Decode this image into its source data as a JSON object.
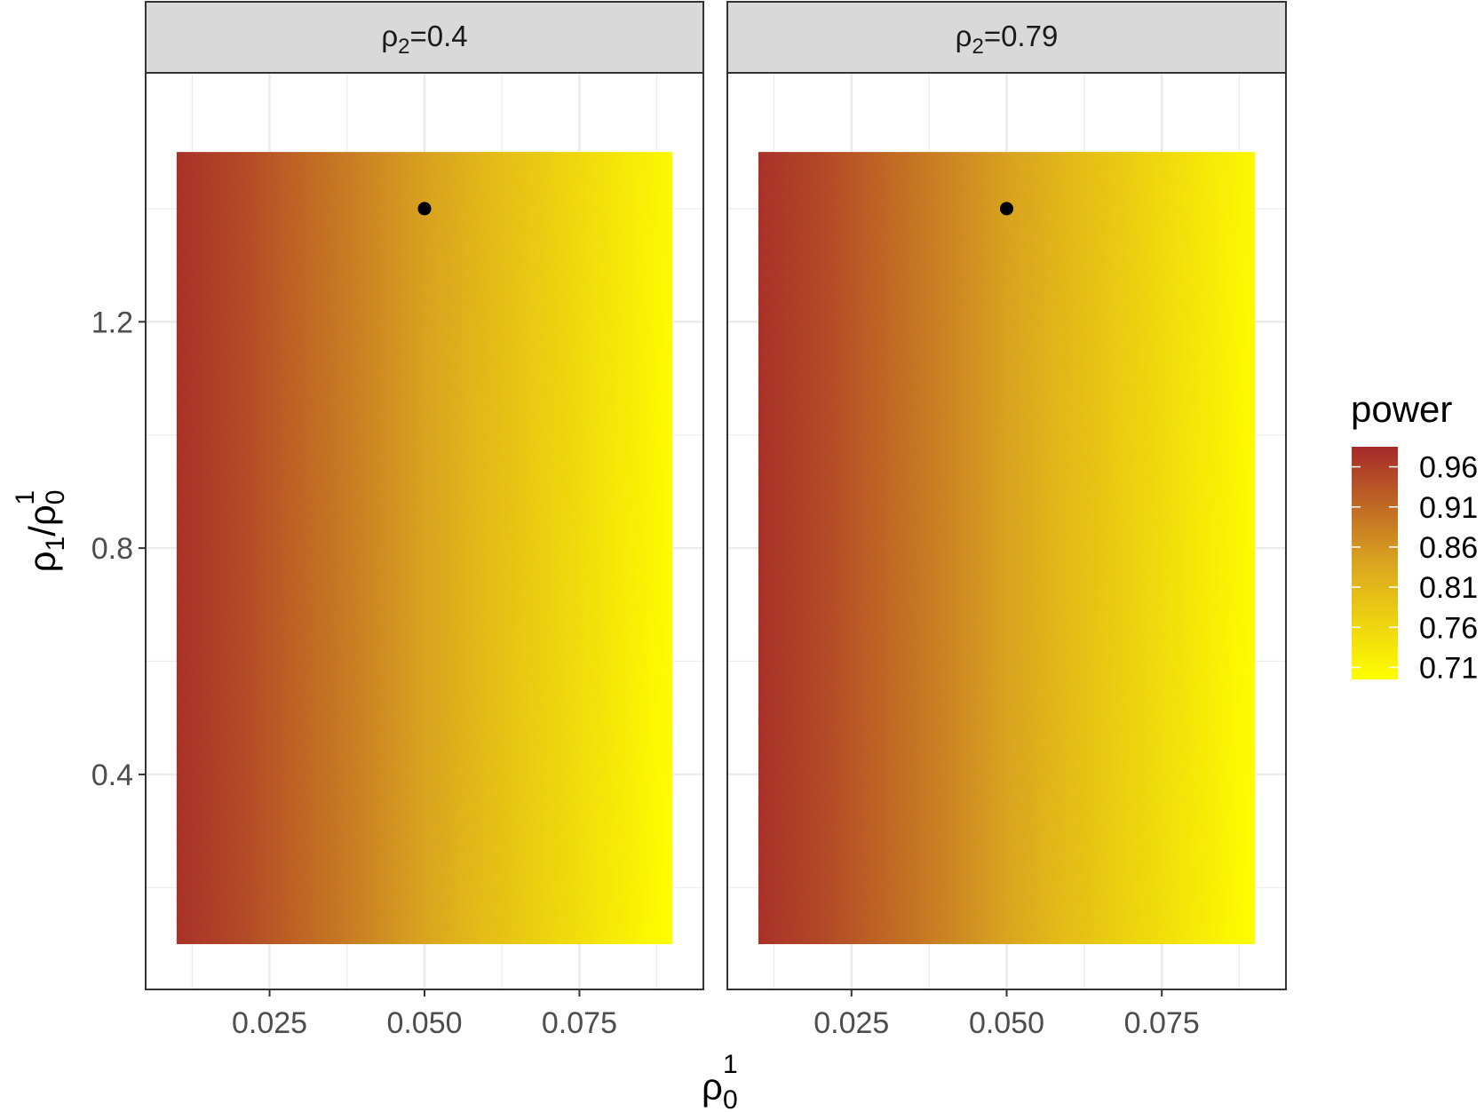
{
  "chart_data": {
    "type": "heatmap",
    "x_axis": {
      "label_base": "ρ",
      "label_sub": "0",
      "label_sup": "1",
      "range": [
        0.005,
        0.095
      ],
      "ticks": [
        0.025,
        0.05,
        0.075
      ],
      "tick_labels": [
        "0.025",
        "0.050",
        "0.075"
      ]
    },
    "y_axis": {
      "label_parts": [
        "ρ",
        "1",
        "/",
        "ρ",
        "0",
        "1"
      ],
      "range": [
        0.02,
        1.64
      ],
      "ticks": [
        0.4,
        0.8,
        1.2
      ],
      "tick_labels": [
        "0.4",
        "0.8",
        "1.2"
      ]
    },
    "grid": true,
    "legend": {
      "title": "power",
      "position": "right",
      "range": [
        0.695,
        0.985
      ],
      "breaks": [
        0.96,
        0.91,
        0.86,
        0.81,
        0.76,
        0.71
      ],
      "break_labels": [
        "0.96",
        "0.91",
        "0.86",
        "0.81",
        "0.76",
        "0.71"
      ],
      "colors": {
        "high": "#a52a2a",
        "mid": "#daa520",
        "low": "#ffff00"
      }
    },
    "tile_extent": {
      "x": [
        0.01,
        0.09
      ],
      "y": [
        0.1,
        1.5
      ]
    },
    "power_profile": {
      "x": [
        0.01,
        0.02,
        0.03,
        0.04,
        0.05,
        0.06,
        0.07,
        0.08,
        0.09
      ],
      "power_at_top": [
        0.975,
        0.95,
        0.915,
        0.88,
        0.845,
        0.81,
        0.775,
        0.74,
        0.705
      ],
      "power_at_bottom": [
        0.975,
        0.95,
        0.915,
        0.88,
        0.84,
        0.8,
        0.765,
        0.73,
        0.695
      ]
    },
    "panels": [
      {
        "strip_base": "ρ",
        "strip_sub": "2",
        "strip_rest": "=0.4",
        "point": {
          "x": 0.05,
          "y": 1.4
        }
      },
      {
        "strip_base": "ρ",
        "strip_sub": "2",
        "strip_rest": "=0.79",
        "point": {
          "x": 0.05,
          "y": 1.4
        }
      }
    ]
  }
}
